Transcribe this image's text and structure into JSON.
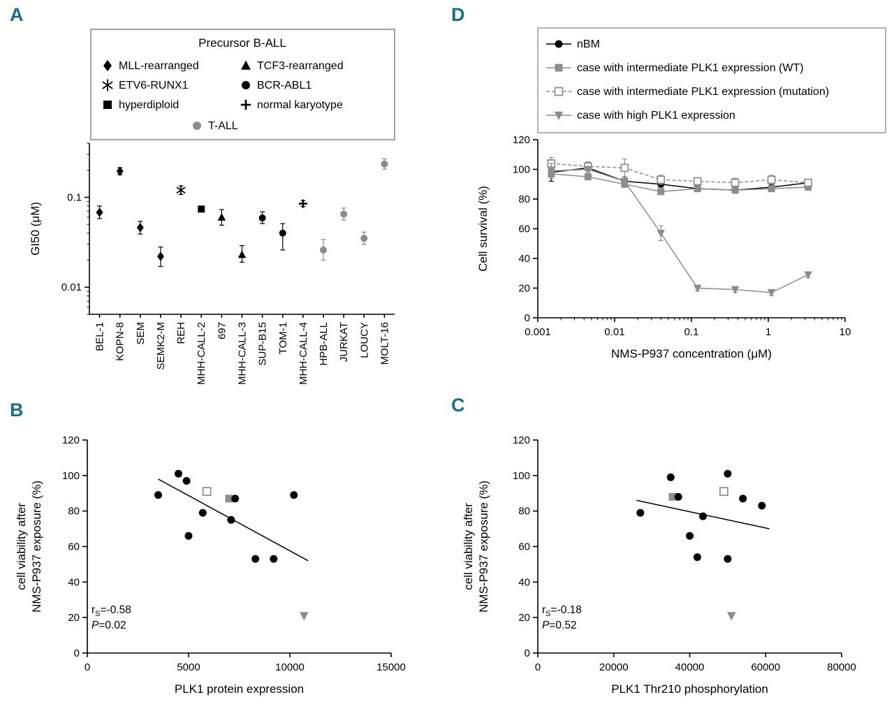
{
  "figure": {
    "background": "#ffffff",
    "panel_label_color": "#15708a",
    "black": "#000000",
    "gray": "#8c8c8c"
  },
  "panels": {
    "A": {
      "label": "A"
    },
    "B": {
      "label": "B"
    },
    "C": {
      "label": "C"
    },
    "D": {
      "label": "D"
    }
  },
  "chart_data": [
    {
      "id": "A",
      "type": "scatter",
      "ylabel": "GI50 (μM)",
      "yscale": "log",
      "ylim": [
        0.005,
        0.4
      ],
      "yticks": [
        0.01,
        0.1
      ],
      "ytick_labels": [
        "0.01",
        "0.1"
      ],
      "categories": [
        "BEL-1",
        "KOPN-8",
        "SEM",
        "SEMK2-M",
        "REH",
        "MHH-CALL-2",
        "697",
        "MHH-CALL-3",
        "SUP-B15",
        "TOM-1",
        "MHH-CALL-4",
        "HPB-ALL",
        "JURKAT",
        "LOUCY",
        "MOLT-16"
      ],
      "legend": {
        "title": "Precursor B-ALL",
        "left_column": [
          {
            "label": "MLL-rearranged",
            "marker": "diamond",
            "color": "#000000"
          },
          {
            "label": "ETV6-RUNX1",
            "marker": "asterisk",
            "color": "#000000"
          },
          {
            "label": "hyperdiploid",
            "marker": "square",
            "color": "#000000"
          }
        ],
        "right_column": [
          {
            "label": "TCF3-rearranged",
            "marker": "triangle-up",
            "color": "#000000"
          },
          {
            "label": "BCR-ABL1",
            "marker": "circle",
            "color": "#000000"
          },
          {
            "label": "normal karyotype",
            "marker": "cross",
            "color": "#000000"
          }
        ],
        "bottom": [
          {
            "label": "T-ALL",
            "marker": "circle",
            "color": "#8c8c8c"
          }
        ]
      },
      "points": [
        {
          "category": "BEL-1",
          "subtype": "MLL-rearranged",
          "marker": "diamond",
          "color": "#000000",
          "gi50": 0.068,
          "err_lo": 0.058,
          "err_hi": 0.08
        },
        {
          "category": "KOPN-8",
          "subtype": "MLL-rearranged",
          "marker": "diamond",
          "color": "#000000",
          "gi50": 0.195,
          "err_lo": 0.178,
          "err_hi": 0.214
        },
        {
          "category": "SEM",
          "subtype": "MLL-rearranged",
          "marker": "diamond",
          "color": "#000000",
          "gi50": 0.046,
          "err_lo": 0.039,
          "err_hi": 0.054
        },
        {
          "category": "SEMK2-M",
          "subtype": "MLL-rearranged",
          "marker": "diamond",
          "color": "#000000",
          "gi50": 0.022,
          "err_lo": 0.017,
          "err_hi": 0.028
        },
        {
          "category": "REH",
          "subtype": "ETV6-RUNX1",
          "marker": "asterisk",
          "color": "#000000",
          "gi50": 0.12,
          "err_lo": 0.108,
          "err_hi": 0.134
        },
        {
          "category": "MHH-CALL-2",
          "subtype": "hyperdiploid",
          "marker": "square",
          "color": "#000000",
          "gi50": 0.074,
          "err_lo": 0.07,
          "err_hi": 0.078
        },
        {
          "category": "697",
          "subtype": "TCF3-rearranged",
          "marker": "triangle-up",
          "color": "#000000",
          "gi50": 0.06,
          "err_lo": 0.049,
          "err_hi": 0.073
        },
        {
          "category": "MHH-CALL-3",
          "subtype": "TCF3-rearranged",
          "marker": "triangle-up",
          "color": "#000000",
          "gi50": 0.023,
          "err_lo": 0.019,
          "err_hi": 0.029
        },
        {
          "category": "SUP-B15",
          "subtype": "BCR-ABL1",
          "marker": "circle",
          "color": "#000000",
          "gi50": 0.059,
          "err_lo": 0.051,
          "err_hi": 0.069
        },
        {
          "category": "TOM-1",
          "subtype": "BCR-ABL1",
          "marker": "circle",
          "color": "#000000",
          "gi50": 0.04,
          "err_lo": 0.026,
          "err_hi": 0.051
        },
        {
          "category": "MHH-CALL-4",
          "subtype": "normal karyotype",
          "marker": "cross",
          "color": "#000000",
          "gi50": 0.085,
          "err_lo": 0.079,
          "err_hi": 0.092
        },
        {
          "category": "HPB-ALL",
          "subtype": "T-ALL",
          "marker": "circle",
          "color": "#8c8c8c",
          "gi50": 0.026,
          "err_lo": 0.02,
          "err_hi": 0.034
        },
        {
          "category": "JURKAT",
          "subtype": "T-ALL",
          "marker": "circle",
          "color": "#8c8c8c",
          "gi50": 0.065,
          "err_lo": 0.056,
          "err_hi": 0.076
        },
        {
          "category": "LOUCY",
          "subtype": "T-ALL",
          "marker": "circle",
          "color": "#8c8c8c",
          "gi50": 0.035,
          "err_lo": 0.03,
          "err_hi": 0.041
        },
        {
          "category": "MOLT-16",
          "subtype": "T-ALL",
          "marker": "circle",
          "color": "#8c8c8c",
          "gi50": 0.235,
          "err_lo": 0.205,
          "err_hi": 0.268
        }
      ]
    },
    {
      "id": "D",
      "type": "line",
      "xlabel": "NMS-P937 concentration (μM)",
      "ylabel": "Cell survival (%)",
      "xscale": "log",
      "xlim": [
        0.001,
        10
      ],
      "ylim": [
        0,
        120
      ],
      "yticks": [
        0,
        20,
        40,
        60,
        80,
        100,
        120
      ],
      "xticks": [
        0.001,
        0.01,
        0.1,
        1,
        10
      ],
      "xtick_labels": [
        "0.001",
        "0.01",
        "0.1",
        "1",
        "10"
      ],
      "x": [
        0.0015,
        0.0045,
        0.0135,
        0.04,
        0.12,
        0.37,
        1.1,
        3.3
      ],
      "series": [
        {
          "name": "nBM",
          "marker": "circle",
          "color": "#000000",
          "line": "solid",
          "values": [
            98,
            101,
            92,
            90,
            87,
            86,
            88,
            91
          ],
          "errors": [
            6,
            2,
            3,
            2,
            2,
            2,
            2,
            2
          ]
        },
        {
          "name": "case with intermediate PLK1 expression (WT)",
          "marker": "square",
          "color": "#8c8c8c",
          "line": "solid",
          "values": [
            97,
            95,
            90,
            85,
            87,
            86,
            87,
            88
          ],
          "errors": [
            2,
            2,
            2,
            2,
            2,
            2,
            2,
            2
          ]
        },
        {
          "name": "case with intermediate PLK1 expression (mutation)",
          "marker": "square-open",
          "color": "#8c8c8c",
          "line": "dashed",
          "values": [
            104,
            102,
            101,
            93,
            92,
            91,
            93,
            91
          ],
          "errors": [
            4,
            3,
            6,
            3,
            2,
            3,
            3,
            2
          ]
        },
        {
          "name": "case with high PLK1 expression",
          "marker": "triangle-down",
          "color": "#8c8c8c",
          "line": "solid",
          "values": [
            99,
            100,
            92,
            57,
            20,
            19,
            17,
            29
          ],
          "errors": [
            5,
            2,
            2,
            5,
            2,
            2,
            2,
            2
          ]
        }
      ]
    },
    {
      "id": "B",
      "type": "scatter",
      "xlabel": "PLK1 protein expression",
      "ylabel_lines": [
        "cell viability after",
        "NMS-P937 exposure (%)"
      ],
      "xlim": [
        0,
        15000
      ],
      "ylim": [
        0,
        120
      ],
      "xticks": [
        0,
        5000,
        10000,
        15000
      ],
      "yticks": [
        0,
        20,
        40,
        60,
        80,
        100,
        120
      ],
      "points": [
        {
          "x": 3500,
          "y": 89,
          "marker": "circle",
          "color": "#000000"
        },
        {
          "x": 4500,
          "y": 101,
          "marker": "circle",
          "color": "#000000"
        },
        {
          "x": 4900,
          "y": 97,
          "marker": "circle",
          "color": "#000000"
        },
        {
          "x": 5000,
          "y": 66,
          "marker": "circle",
          "color": "#000000"
        },
        {
          "x": 5700,
          "y": 79,
          "marker": "circle",
          "color": "#000000"
        },
        {
          "x": 5900,
          "y": 91,
          "marker": "square-open",
          "color": "#8c8c8c"
        },
        {
          "x": 7000,
          "y": 87,
          "marker": "square",
          "color": "#8c8c8c"
        },
        {
          "x": 7300,
          "y": 87,
          "marker": "circle",
          "color": "#000000"
        },
        {
          "x": 7100,
          "y": 75,
          "marker": "circle",
          "color": "#000000"
        },
        {
          "x": 8300,
          "y": 53,
          "marker": "circle",
          "color": "#000000"
        },
        {
          "x": 9200,
          "y": 53,
          "marker": "circle",
          "color": "#000000"
        },
        {
          "x": 10200,
          "y": 89,
          "marker": "circle",
          "color": "#000000"
        },
        {
          "x": 10700,
          "y": 21,
          "marker": "triangle-down",
          "color": "#8c8c8c"
        }
      ],
      "trendline": {
        "x1": 3500,
        "y1": 98,
        "x2": 10900,
        "y2": 52
      },
      "annotation": {
        "r_prefix": "r",
        "r_sub": "S",
        "r_rest": "=-0.58",
        "p_prefix": "P",
        "p_rest": "=0.02"
      }
    },
    {
      "id": "C",
      "type": "scatter",
      "xlabel": "PLK1 Thr210 phosphorylation",
      "ylabel_lines": [
        "cell viability after",
        "NMS-P937 exposure (%)"
      ],
      "xlim": [
        0,
        80000
      ],
      "ylim": [
        0,
        120
      ],
      "xticks": [
        0,
        20000,
        40000,
        60000,
        80000
      ],
      "yticks": [
        0,
        20,
        40,
        60,
        80,
        100,
        120
      ],
      "points": [
        {
          "x": 27000,
          "y": 79,
          "marker": "circle",
          "color": "#000000"
        },
        {
          "x": 35000,
          "y": 99,
          "marker": "circle",
          "color": "#000000"
        },
        {
          "x": 35500,
          "y": 88,
          "marker": "square",
          "color": "#8c8c8c"
        },
        {
          "x": 37000,
          "y": 88,
          "marker": "circle",
          "color": "#000000"
        },
        {
          "x": 40000,
          "y": 66,
          "marker": "circle",
          "color": "#000000"
        },
        {
          "x": 42000,
          "y": 54,
          "marker": "circle",
          "color": "#000000"
        },
        {
          "x": 43500,
          "y": 77,
          "marker": "circle",
          "color": "#000000"
        },
        {
          "x": 49000,
          "y": 91,
          "marker": "square-open",
          "color": "#8c8c8c"
        },
        {
          "x": 50000,
          "y": 101,
          "marker": "circle",
          "color": "#000000"
        },
        {
          "x": 50000,
          "y": 53,
          "marker": "circle",
          "color": "#000000"
        },
        {
          "x": 54000,
          "y": 87,
          "marker": "circle",
          "color": "#000000"
        },
        {
          "x": 59000,
          "y": 83,
          "marker": "circle",
          "color": "#000000"
        },
        {
          "x": 51000,
          "y": 21,
          "marker": "triangle-down",
          "color": "#8c8c8c"
        }
      ],
      "trendline": {
        "x1": 26000,
        "y1": 86,
        "x2": 61000,
        "y2": 70
      },
      "annotation": {
        "r_prefix": "r",
        "r_sub": "S",
        "r_rest": "=-0.18",
        "p_prefix": "P",
        "p_rest": "=0.52"
      }
    }
  ]
}
